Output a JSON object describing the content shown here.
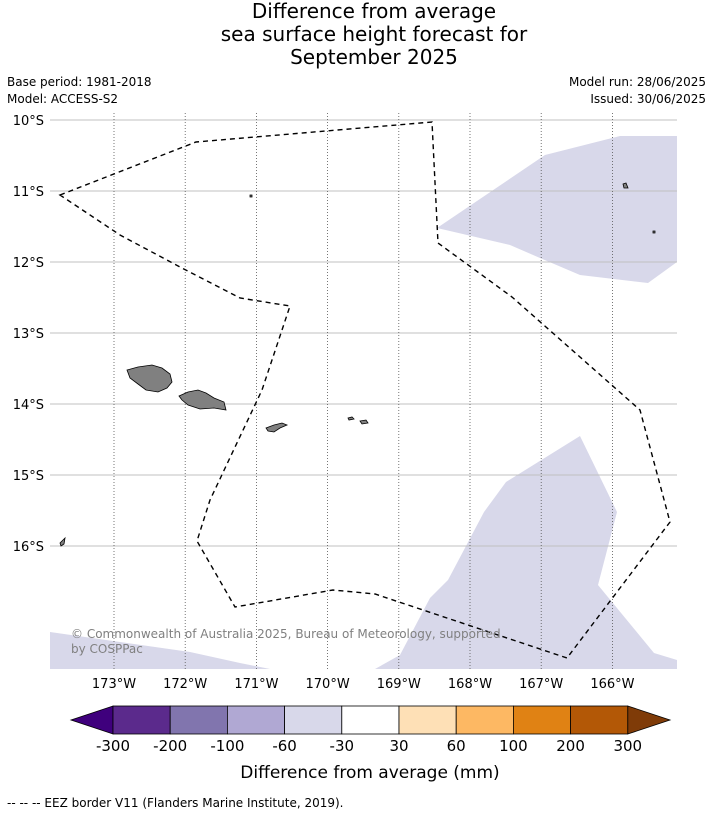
{
  "title": {
    "line1": "Difference from average",
    "line2": "sea surface height forecast for",
    "line3": "September 2025"
  },
  "meta": {
    "base_period": "Base period: 1981-2018",
    "model": "Model: ACCESS-S2",
    "model_run": "Model run: 28/06/2025",
    "issued": "Issued: 30/06/2025"
  },
  "map": {
    "lon_range": [
      -173.9,
      -165.1
    ],
    "lat_range": [
      -17.7,
      -10.0
    ],
    "lat_ticks": [
      {
        "value": -10,
        "label": "10°S"
      },
      {
        "value": -11,
        "label": "11°S"
      },
      {
        "value": -12,
        "label": "12°S"
      },
      {
        "value": -13,
        "label": "13°S"
      },
      {
        "value": -14,
        "label": "14°S"
      },
      {
        "value": -15,
        "label": "15°S"
      },
      {
        "value": -16,
        "label": "16°S"
      }
    ],
    "lon_ticks": [
      {
        "value": -173,
        "label": "173°W"
      },
      {
        "value": -172,
        "label": "172°W"
      },
      {
        "value": -171,
        "label": "171°W"
      },
      {
        "value": -170,
        "label": "170°W"
      },
      {
        "value": -169,
        "label": "169°W"
      },
      {
        "value": -168,
        "label": "168°W"
      },
      {
        "value": -167,
        "label": "167°W"
      },
      {
        "value": -166,
        "label": "166°W"
      }
    ],
    "anomaly_fill_color": "#d8d8ea",
    "land_color": "#808080",
    "copyright_line1": "© Commonwealth of Australia 2025, Bureau of Meteorology, supported",
    "copyright_line2": "by COSPPac"
  },
  "legend": {
    "label": "Difference from average (mm)",
    "tick_labels": [
      "-300",
      "-200",
      "-100",
      "-60",
      "-30",
      "30",
      "60",
      "100",
      "200",
      "300"
    ],
    "colors": [
      "#3f007d",
      "#5b2a8c",
      "#8175ae",
      "#b0a8d3",
      "#d8d8ea",
      "#ffffff",
      "#fee0b6",
      "#fdb863",
      "#e08214",
      "#b35806",
      "#7f3b08"
    ]
  },
  "footer": "--  --  -- EEZ border V11 (Flanders Marine Institute, 2019)."
}
